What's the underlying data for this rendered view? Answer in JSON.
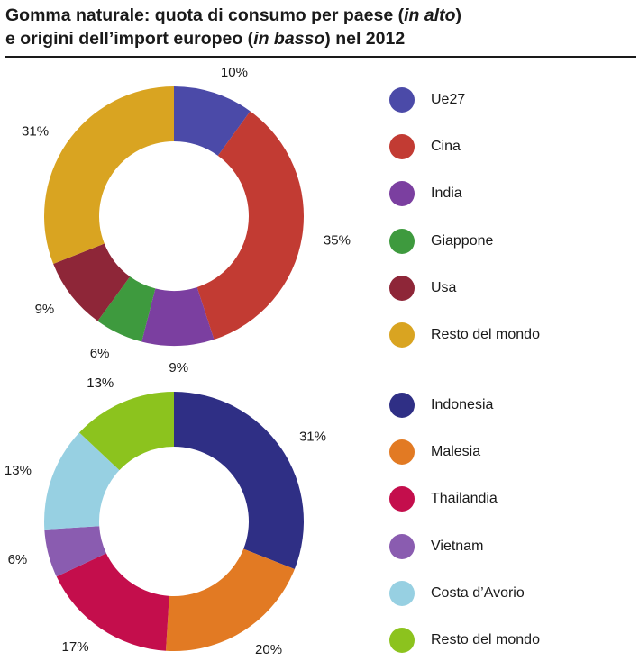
{
  "title": {
    "line1_a": "Gomma naturale: quota di consumo per paese (",
    "line1_em": "in alto",
    "line1_b": ")",
    "line2_a": "e origini dell’import europeo (",
    "line2_em": "in basso",
    "line2_b": ") nel 2012"
  },
  "chart_data": [
    {
      "type": "pie",
      "title": "",
      "categories": [
        "Ue27",
        "Cina",
        "India",
        "Giappone",
        "Usa",
        "Resto del mondo"
      ],
      "values": [
        10,
        35,
        9,
        6,
        9,
        31
      ],
      "labels": [
        "10%",
        "35%",
        "9%",
        "6%",
        "9%",
        "31%"
      ],
      "colors": [
        "#4b4aa8",
        "#c23b33",
        "#7b3fa0",
        "#3e9a3e",
        "#8e2638",
        "#d9a421"
      ],
      "legend_position": "right"
    },
    {
      "type": "pie",
      "title": "",
      "categories": [
        "Indonesia",
        "Malesia",
        "Thailandia",
        "Vietnam",
        "Costa d’Avorio",
        "Resto del mondo"
      ],
      "values": [
        31,
        20,
        17,
        6,
        13,
        13
      ],
      "labels": [
        "31%",
        "20%",
        "17%",
        "6%",
        "13%",
        "13%"
      ],
      "colors": [
        "#2f2f85",
        "#e27a23",
        "#c40e4c",
        "#8a5cb0",
        "#97d0e2",
        "#8cc31e"
      ],
      "legend_position": "right"
    }
  ]
}
